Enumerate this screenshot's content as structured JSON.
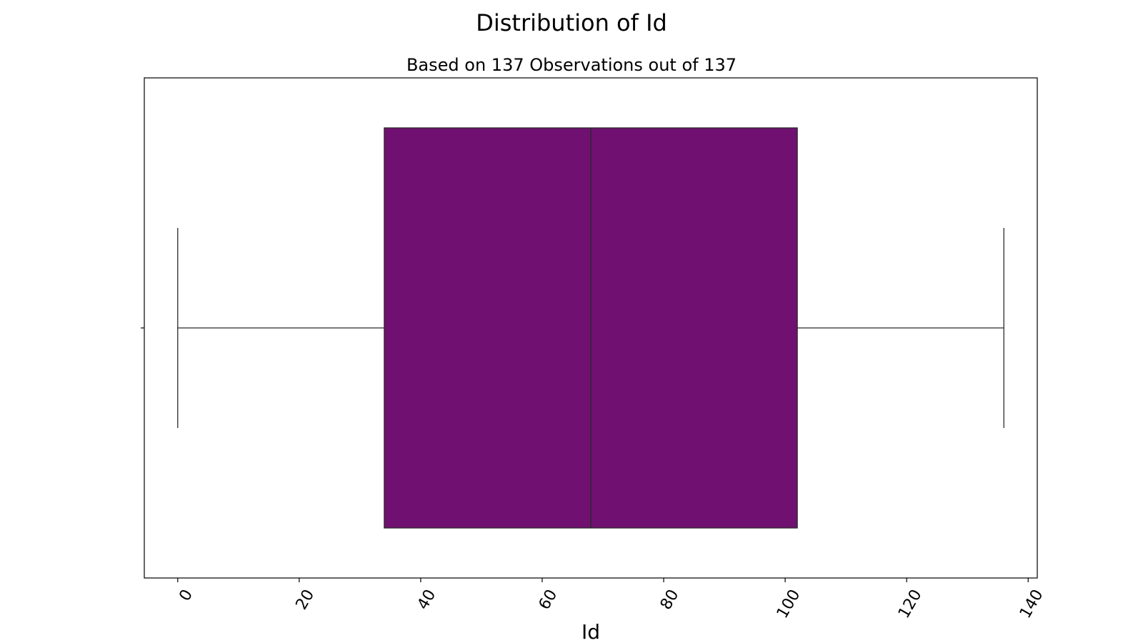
{
  "chart_data": {
    "type": "box",
    "title": "Distribution of Id",
    "subtitle": "Based on 137 Observations out of 137",
    "xlabel": "Id",
    "ylabel": "",
    "orientation": "horizontal",
    "xlim": [
      -5.5,
      141.5
    ],
    "xticks": [
      0,
      20,
      40,
      60,
      80,
      100,
      120,
      140
    ],
    "tick_labels": [
      "0",
      "20",
      "40",
      "60",
      "80",
      "100",
      "120",
      "140"
    ],
    "grid": false,
    "legend": "none",
    "box": {
      "whisker_low": 0,
      "q1": 34,
      "median": 68,
      "q3": 102,
      "whisker_high": 136
    },
    "colors": {
      "box_fill": "#701070",
      "line": "#2b2b2b",
      "frame": "#000000"
    }
  }
}
